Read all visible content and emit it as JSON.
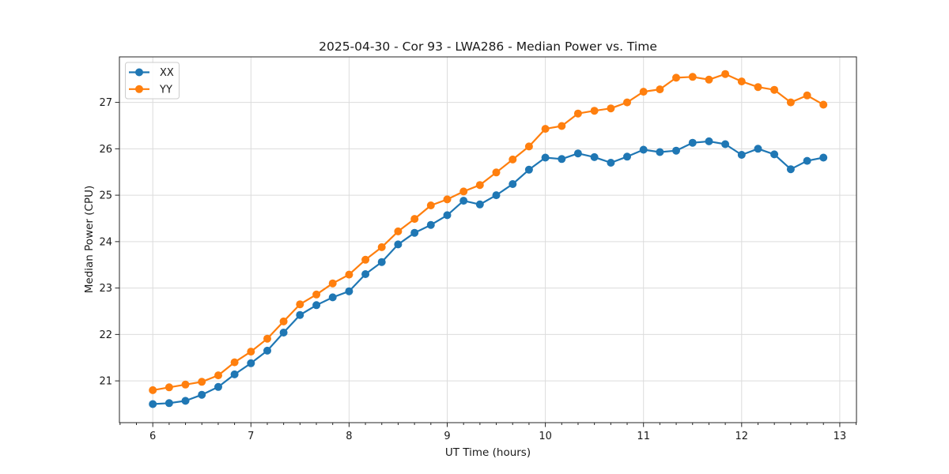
{
  "window": {
    "background_color": "#ffffff"
  },
  "chart_data": {
    "type": "line",
    "title": "2025-04-30 - Cor 93 - LWA286 - Median Power vs. Time",
    "xlabel": "UT Time (hours)",
    "ylabel": "Median Power (CPU)",
    "xlim": [
      5.66,
      13.17
    ],
    "ylim": [
      20.1,
      27.98
    ],
    "x_ticks": [
      6,
      7,
      8,
      9,
      10,
      11,
      12,
      13
    ],
    "y_ticks": [
      21,
      22,
      23,
      24,
      25,
      26,
      27
    ],
    "x_minor_tick_step_hours": 0.16667,
    "grid": true,
    "grid_color": "#dcdcdc",
    "spine_color": "#262626",
    "legend": {
      "position": "upper-left",
      "entries": [
        "XX",
        "YY"
      ]
    },
    "x": [
      6.0,
      6.167,
      6.333,
      6.5,
      6.667,
      6.833,
      7.0,
      7.167,
      7.333,
      7.5,
      7.667,
      7.833,
      8.0,
      8.167,
      8.333,
      8.5,
      8.667,
      8.833,
      9.0,
      9.167,
      9.333,
      9.5,
      9.667,
      9.833,
      10.0,
      10.167,
      10.333,
      10.5,
      10.667,
      10.833,
      11.0,
      11.167,
      11.333,
      11.5,
      11.667,
      11.833,
      12.0,
      12.167,
      12.333,
      12.5,
      12.667,
      12.833
    ],
    "series": [
      {
        "name": "XX",
        "color": "#1f77b4",
        "values": [
          20.5,
          20.52,
          20.57,
          20.7,
          20.87,
          21.14,
          21.38,
          21.65,
          22.04,
          22.42,
          22.63,
          22.8,
          22.93,
          23.3,
          23.56,
          23.94,
          24.19,
          24.36,
          24.57,
          24.88,
          24.8,
          25.0,
          25.24,
          25.55,
          25.81,
          25.78,
          25.9,
          25.82,
          25.7,
          25.83,
          25.98,
          25.93,
          25.96,
          26.13,
          26.16,
          26.1,
          25.87,
          26.0,
          25.88,
          25.56,
          25.74,
          25.81
        ]
      },
      {
        "name": "YY",
        "color": "#ff7f0e",
        "values": [
          20.8,
          20.86,
          20.92,
          20.98,
          21.12,
          21.4,
          21.63,
          21.91,
          22.28,
          22.65,
          22.86,
          23.1,
          23.29,
          23.61,
          23.88,
          24.22,
          24.49,
          24.78,
          24.91,
          25.08,
          25.22,
          25.49,
          25.77,
          26.05,
          26.43,
          26.49,
          26.76,
          26.82,
          26.87,
          27.0,
          27.23,
          27.28,
          27.53,
          27.55,
          27.49,
          27.61,
          27.45,
          27.33,
          27.27,
          27.0,
          27.15,
          26.95
        ]
      }
    ]
  }
}
